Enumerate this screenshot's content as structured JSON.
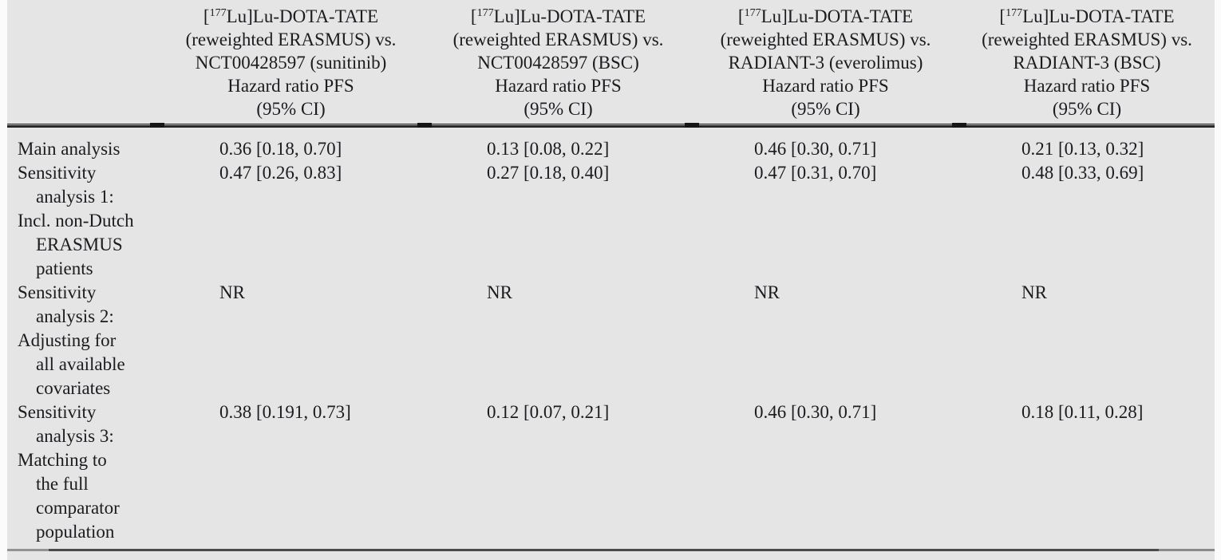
{
  "page": {
    "background_color": "#e5e5e5",
    "text_color": "#1b1b20",
    "rule_color": "#2a2a2a"
  },
  "table": {
    "columns": [
      {
        "line1_pre": "[",
        "line1_sup": "177",
        "line1_post": "Lu]Lu-DOTA-TATE",
        "lines": [
          "(reweighted ERASMUS) vs.",
          "NCT00428597 (sunitinib)",
          "Hazard ratio PFS",
          "(95% CI)"
        ]
      },
      {
        "line1_pre": "[",
        "line1_sup": "177",
        "line1_post": "Lu]Lu-DOTA-TATE",
        "lines": [
          "(reweighted ERASMUS) vs.",
          "NCT00428597 (BSC)",
          "Hazard ratio PFS",
          "(95% CI)"
        ]
      },
      {
        "line1_pre": "[",
        "line1_sup": "177",
        "line1_post": "Lu]Lu-DOTA-TATE",
        "lines": [
          "(reweighted ERASMUS) vs.",
          "RADIANT-3 (everolimus)",
          "Hazard ratio PFS",
          "(95% CI)"
        ]
      },
      {
        "line1_pre": "[",
        "line1_sup": "177",
        "line1_post": "Lu]Lu-DOTA-TATE",
        "lines": [
          "(reweighted ERASMUS) vs.",
          "RADIANT-3 (BSC)",
          "Hazard ratio PFS",
          "(95% CI)"
        ]
      }
    ],
    "rows": [
      {
        "label_lines": [
          {
            "text": "Main analysis",
            "indent": false
          }
        ],
        "values": [
          "0.36 [0.18, 0.70]",
          "0.13 [0.08, 0.22]",
          "0.46 [0.30, 0.71]",
          "0.21 [0.13, 0.32]"
        ]
      },
      {
        "label_lines": [
          {
            "text": "Sensitivity",
            "indent": false
          },
          {
            "text": "analysis 1:",
            "indent": true
          },
          {
            "text": "Incl. non-Dutch",
            "indent": false
          },
          {
            "text": "ERASMUS",
            "indent": true
          },
          {
            "text": "patients",
            "indent": true
          }
        ],
        "values": [
          "0.47 [0.26, 0.83]",
          "0.27 [0.18, 0.40]",
          "0.47 [0.31, 0.70]",
          "0.48 [0.33, 0.69]"
        ]
      },
      {
        "label_lines": [
          {
            "text": "Sensitivity",
            "indent": false
          },
          {
            "text": "analysis 2:",
            "indent": true
          },
          {
            "text": "Adjusting for",
            "indent": false
          },
          {
            "text": "all available",
            "indent": true
          },
          {
            "text": "covariates",
            "indent": true
          }
        ],
        "values": [
          "NR",
          "NR",
          "NR",
          "NR"
        ]
      },
      {
        "label_lines": [
          {
            "text": "Sensitivity",
            "indent": false
          },
          {
            "text": "analysis 3:",
            "indent": true
          },
          {
            "text": "Matching to",
            "indent": false
          },
          {
            "text": "the full",
            "indent": true
          },
          {
            "text": "comparator",
            "indent": true
          },
          {
            "text": "population",
            "indent": true
          }
        ],
        "values": [
          "0.38 [0.191, 0.73]",
          "0.12 [0.07, 0.21]",
          "0.46 [0.30, 0.71]",
          "0.18 [0.11, 0.28]"
        ]
      }
    ]
  }
}
